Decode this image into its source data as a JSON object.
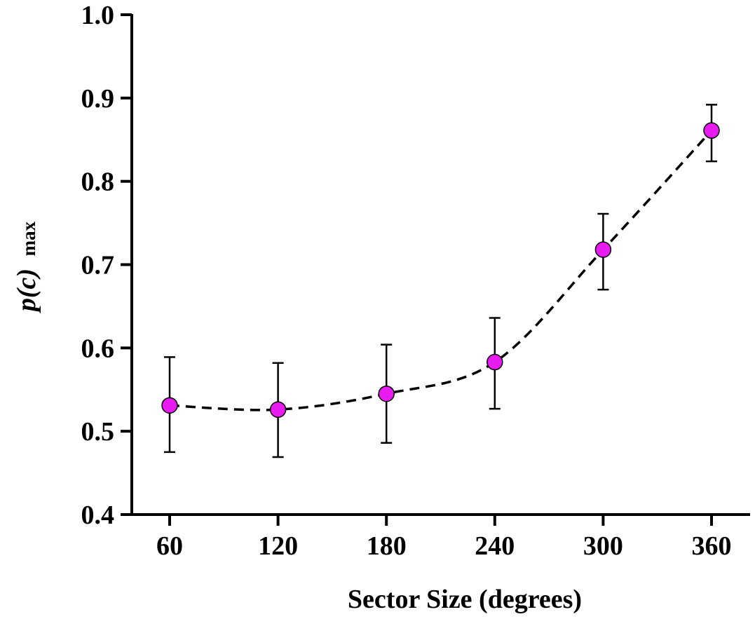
{
  "chart_data": {
    "type": "line",
    "title": "",
    "xlabel": "Sector Size (degrees)",
    "ylabel": {
      "main": "p(c)",
      "subscript": "max"
    },
    "categories": [
      "60",
      "120",
      "180",
      "240",
      "300",
      "360"
    ],
    "x": [
      60,
      120,
      180,
      240,
      300,
      360
    ],
    "ylim": [
      0.4,
      1.0
    ],
    "yticks": [
      "0.4",
      "0.5",
      "0.6",
      "0.7",
      "0.8",
      "0.9",
      "1.0"
    ],
    "grid": false,
    "legend": "none",
    "series": [
      {
        "name": "p(c) max",
        "values": [
          0.531,
          0.526,
          0.545,
          0.583,
          0.718,
          0.861
        ],
        "error_low": [
          0.475,
          0.469,
          0.486,
          0.527,
          0.67,
          0.824
        ],
        "error_high": [
          0.589,
          0.582,
          0.604,
          0.636,
          0.761,
          0.892
        ],
        "line_style": "dashed",
        "marker": "circle",
        "marker_color": "#e81cf0",
        "line_color": "#000000"
      }
    ]
  }
}
